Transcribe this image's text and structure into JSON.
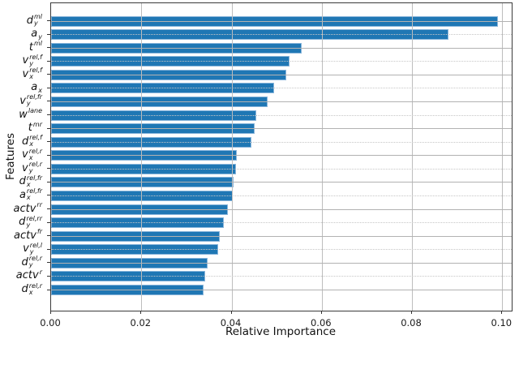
{
  "chart_data": {
    "type": "bar",
    "orientation": "horizontal",
    "title": "",
    "xlabel": "Relative Importance",
    "ylabel": "Features",
    "xlim": [
      0,
      0.1022
    ],
    "grid": true,
    "legend": false,
    "bar_color": "#1f77b4",
    "bar_edge_color": "#87b4da",
    "grid_color": "#b2b2b2",
    "spine_color": "#3a3a3a",
    "xticks": [
      0,
      0.02,
      0.04,
      0.06,
      0.08,
      0.1
    ],
    "xtick_labels": [
      "0.00",
      "0.02",
      "0.04",
      "0.06",
      "0.08",
      "0.10"
    ],
    "categories": [
      "d_y^{ml}",
      "a_y",
      "t^{ml}",
      "v_y^{rel,f}",
      "v_x^{rel,f}",
      "a_x",
      "v_y^{rel,fr}",
      "w^{lane}",
      "t^{mr}",
      "d_x^{rel,f}",
      "v_x^{rel,r}",
      "v_y^{rel,r}",
      "d_x^{rel,fr}",
      "a_x^{rel,fr}",
      "actv^{rr}",
      "d_y^{rel,rr}",
      "actv^{fr}",
      "v_y^{rel,l}",
      "d_y^{rel,r}",
      "actv^{r}",
      "d_x^{rel,r}"
    ],
    "values": [
      0.099,
      0.088,
      0.0555,
      0.0528,
      0.0521,
      0.0494,
      0.048,
      0.0455,
      0.0451,
      0.0444,
      0.0412,
      0.0409,
      0.0404,
      0.0402,
      0.0391,
      0.0383,
      0.0373,
      0.0371,
      0.0346,
      0.0342,
      0.0338
    ],
    "label_parts": [
      {
        "base": "d",
        "sub": "y",
        "sup": "ml"
      },
      {
        "base": "a",
        "sub": "y",
        "sup": ""
      },
      {
        "base": "t",
        "sub": "",
        "sup": "ml"
      },
      {
        "base": "v",
        "sub": "y",
        "sup": "rel,f"
      },
      {
        "base": "v",
        "sub": "x",
        "sup": "rel,f"
      },
      {
        "base": "a",
        "sub": "x",
        "sup": ""
      },
      {
        "base": "v",
        "sub": "y",
        "sup": "rel,fr"
      },
      {
        "base": "w",
        "sub": "",
        "sup": "lane"
      },
      {
        "base": "t",
        "sub": "",
        "sup": "mr"
      },
      {
        "base": "d",
        "sub": "x",
        "sup": "rel,f"
      },
      {
        "base": "v",
        "sub": "x",
        "sup": "rel,r"
      },
      {
        "base": "v",
        "sub": "y",
        "sup": "rel,r"
      },
      {
        "base": "d",
        "sub": "x",
        "sup": "rel,fr"
      },
      {
        "base": "a",
        "sub": "x",
        "sup": "rel,fr"
      },
      {
        "base": "actv",
        "sub": "",
        "sup": "rr"
      },
      {
        "base": "d",
        "sub": "y",
        "sup": "rel,rr"
      },
      {
        "base": "actv",
        "sub": "",
        "sup": "fr"
      },
      {
        "base": "v",
        "sub": "y",
        "sup": "rel,l"
      },
      {
        "base": "d",
        "sub": "y",
        "sup": "rel,r"
      },
      {
        "base": "actv",
        "sub": "",
        "sup": "r"
      },
      {
        "base": "d",
        "sub": "x",
        "sup": "rel,r"
      }
    ]
  }
}
